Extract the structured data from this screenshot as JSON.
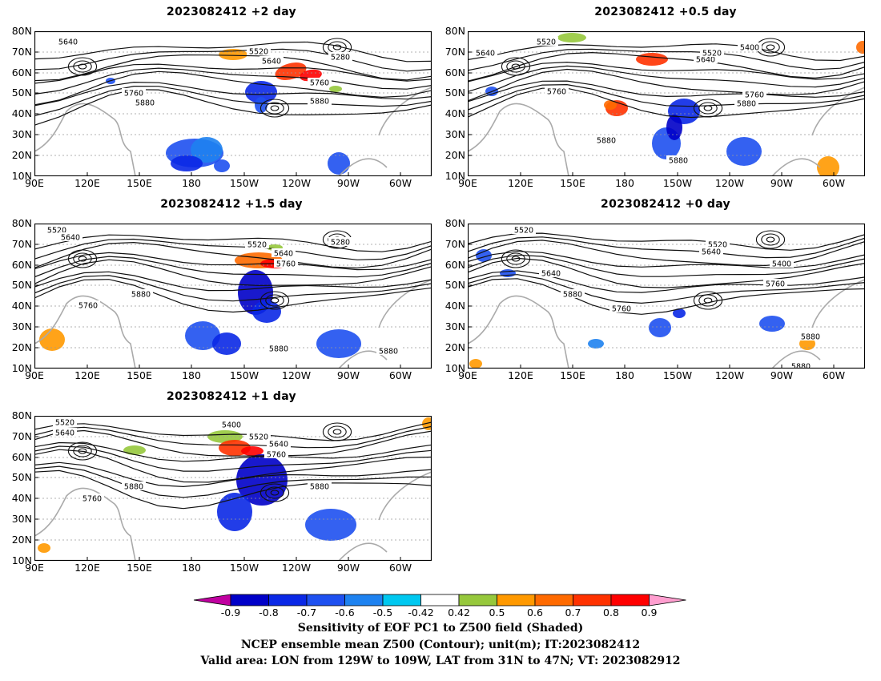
{
  "panels": [
    {
      "id": "p1",
      "title": "2023082412 +2 day",
      "labels": [
        "5640",
        "5520",
        "5640",
        "5280",
        "5760",
        "5760",
        "5880",
        "5880"
      ]
    },
    {
      "id": "p2",
      "title": "2023082412 +0.5 day",
      "labels": [
        "5520",
        "5640",
        "5640",
        "5520",
        "5400",
        "5760",
        "5760",
        "5880",
        "5880",
        "5880"
      ]
    },
    {
      "id": "p3",
      "title": "2023082412 +1.5 day",
      "labels": [
        "5520",
        "5640",
        "5520",
        "5640",
        "5280",
        "5760",
        "5760",
        "5880",
        "5880",
        "5880"
      ]
    },
    {
      "id": "p4",
      "title": "2023082412 +0 day",
      "labels": [
        "5520",
        "5520",
        "5640",
        "5640",
        "5400",
        "5760",
        "5760",
        "5880",
        "5880",
        "5880"
      ]
    },
    {
      "id": "p5",
      "title": "2023082412 +1 day",
      "labels": [
        "5520",
        "5640",
        "5400",
        "5520",
        "5640",
        "5760",
        "5760",
        "5880",
        "5880"
      ]
    }
  ],
  "axes": {
    "lat_ticks": [
      "80N",
      "70N",
      "60N",
      "50N",
      "40N",
      "30N",
      "20N",
      "10N"
    ],
    "lon_ticks": [
      "90E",
      "120E",
      "150E",
      "180",
      "150W",
      "120W",
      "90W",
      "60W"
    ]
  },
  "colorbar": {
    "labels": [
      "-0.9",
      "-0.8",
      "-0.7",
      "-0.6",
      "-0.5",
      "-0.42",
      "0.42",
      "0.5",
      "0.6",
      "0.7",
      "0.8",
      "0.9"
    ],
    "colors": [
      "#c000a0",
      "#0000c8",
      "#0a28e6",
      "#1e50f0",
      "#1e82f0",
      "#00c8f0",
      "#ffffff",
      "#96c83c",
      "#ff9900",
      "#ff6a00",
      "#ff3200",
      "#ff0000",
      "#ff9ecf"
    ]
  },
  "footer": {
    "line1": "Sensitivity of EOF PC1 to Z500 field (Shaded)",
    "line2": "NCEP ensemble mean Z500 (Contour); unit(m); IT:2023082412",
    "line3": "Valid area: LON from 129W to 109W, LAT from 31N to 47N; VT: 2023082912"
  }
}
